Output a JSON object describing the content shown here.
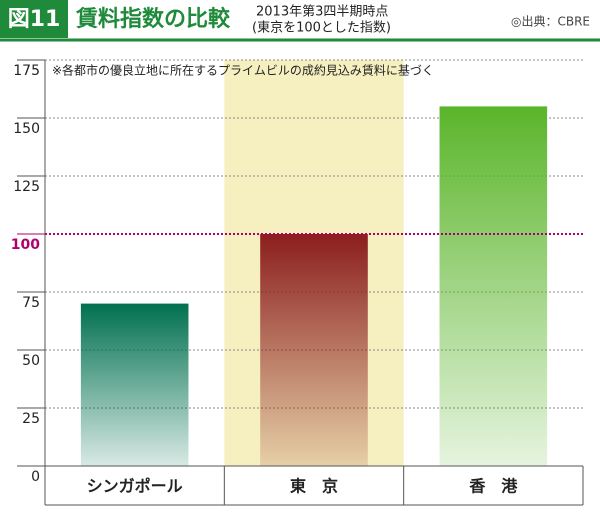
{
  "chart_data": {
    "type": "bar",
    "figure_label": "図11",
    "title": "賃料指数の比較",
    "subtitle": [
      "2013年第3四半期時点",
      "(東京を100とした指数)"
    ],
    "source": "◎出典：CBRE",
    "note": "※各都市の優良立地に所在するプライムビルの成約見込み賃料に基づく",
    "categories": [
      "シンガポール",
      "東　京",
      "香　港"
    ],
    "values": [
      70,
      100,
      155
    ],
    "colors": [
      "#00704f",
      "#8b1e1e",
      "#5ab52a"
    ],
    "highlight_index": 1,
    "highlight_color": "#f6efbf",
    "reference_line": 100,
    "reference_color": "#b0006e",
    "ylim": [
      0,
      175
    ],
    "yticks": [
      0,
      25,
      50,
      75,
      100,
      125,
      150,
      175
    ],
    "grid": true
  }
}
